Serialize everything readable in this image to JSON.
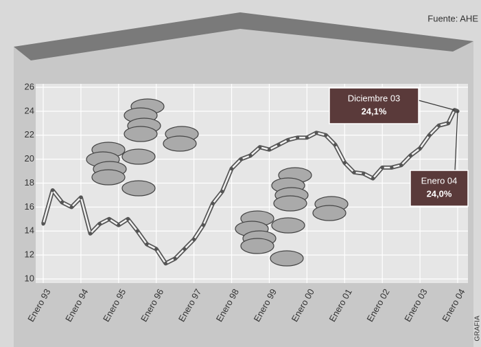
{
  "chart_data": {
    "type": "line",
    "source": "Fuente: AHE",
    "credit": "GRAFIA",
    "x": [
      1993,
      1993.25,
      1993.5,
      1993.75,
      1994,
      1994.25,
      1994.5,
      1994.75,
      1995,
      1995.25,
      1995.5,
      1995.75,
      1996,
      1996.25,
      1996.5,
      1996.75,
      1997,
      1997.25,
      1997.5,
      1997.75,
      1998,
      1998.25,
      1998.5,
      1998.75,
      1999,
      1999.25,
      1999.5,
      1999.75,
      2000,
      2000.25,
      2000.5,
      2000.75,
      2001,
      2001.25,
      2001.5,
      2001.75,
      2002,
      2002.25,
      2002.5,
      2002.75,
      2003,
      2003.25,
      2003.5,
      2003.75,
      2003.917,
      2004
    ],
    "values": [
      14.6,
      17.4,
      16.4,
      16.0,
      16.8,
      13.8,
      14.6,
      15.0,
      14.5,
      15.0,
      14.0,
      12.9,
      12.5,
      11.3,
      11.7,
      12.5,
      13.3,
      14.5,
      16.3,
      17.3,
      19.2,
      20.0,
      20.3,
      21.0,
      20.8,
      21.2,
      21.6,
      21.8,
      21.8,
      22.2,
      22.0,
      21.2,
      19.7,
      18.9,
      18.8,
      18.4,
      19.3,
      19.3,
      19.5,
      20.3,
      20.9,
      22.0,
      22.8,
      23.0,
      24.1,
      24.0
    ],
    "value_labels": [
      null,
      null,
      null,
      null,
      null,
      null,
      null,
      null,
      null,
      null,
      null,
      null,
      null,
      null,
      null,
      null,
      null,
      null,
      null,
      null,
      null,
      null,
      null,
      null,
      null,
      null,
      null,
      null,
      null,
      null,
      null,
      null,
      null,
      null,
      null,
      null,
      null,
      null,
      null,
      null,
      null,
      null,
      null,
      null,
      "24,1%",
      "24,0%"
    ],
    "annotations": [
      "Diciembre 03",
      "Enero 04"
    ],
    "color": "#555555",
    "xlim": [
      1993,
      2004
    ],
    "xticks": [
      {
        "value": 1993,
        "label": "Enero 93"
      },
      {
        "value": 1994,
        "label": "Enero 94"
      },
      {
        "value": 1995,
        "label": "Enero 95"
      },
      {
        "value": 1996,
        "label": "Enero 96"
      },
      {
        "value": 1997,
        "label": "Enero 97"
      },
      {
        "value": 1998,
        "label": "Enero 98"
      },
      {
        "value": 1999,
        "label": "Enero 99"
      },
      {
        "value": 2000,
        "label": "Enero 00"
      },
      {
        "value": 2001,
        "label": "Enero 01"
      },
      {
        "value": 2002,
        "label": "Enero 02"
      },
      {
        "value": 2003,
        "label": "Enero 03"
      },
      {
        "value": 2004,
        "label": "Enero 04"
      }
    ],
    "ylim": [
      10,
      26
    ],
    "yticks": [
      10,
      12,
      14,
      16,
      18,
      20,
      22,
      24,
      26
    ],
    "grid": true
  }
}
